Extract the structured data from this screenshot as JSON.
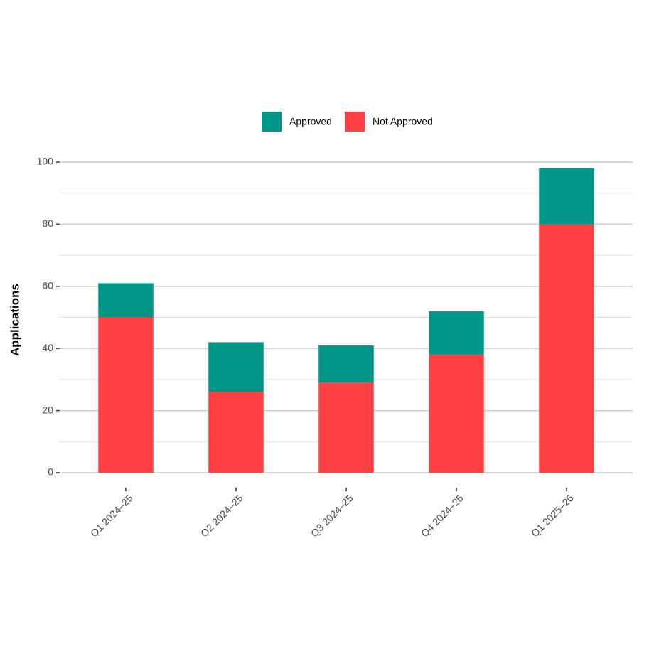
{
  "chart_data": {
    "type": "stacked_bar",
    "y_label": "Applications",
    "categories": [
      "Q1 2024–25",
      "Q2 2024–25",
      "Q3 2024–25",
      "Q4 2024–25",
      "Q1 2025–26"
    ],
    "series": [
      {
        "name": "Approved",
        "color": "#009688",
        "values": [
          11,
          16,
          12,
          14,
          18
        ]
      },
      {
        "name": "Not Approved",
        "color": "#FF4043",
        "values": [
          50,
          26,
          29,
          38,
          80
        ]
      }
    ],
    "ylim": [
      0,
      100
    ],
    "yticks": [
      0,
      20,
      40,
      60,
      80,
      100
    ],
    "minor_yticks": [
      10,
      30,
      50,
      70,
      90
    ],
    "grid": true,
    "legend": "top"
  }
}
